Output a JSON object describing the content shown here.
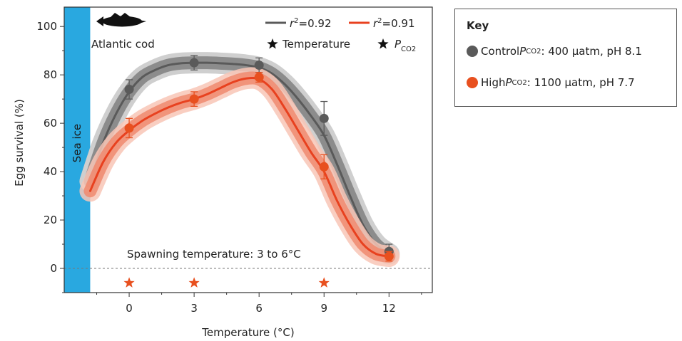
{
  "colors": {
    "control": "#5a5a5a",
    "control_band_inner": "#8c8c8c",
    "control_band_outer": "#cfcfcf",
    "high": "#e8411f",
    "high_band_inner": "#f08a6e",
    "high_band_outer": "#f8c6b6",
    "sea_ice": "#29a8e0",
    "star_temperature": "#111111",
    "star_pco2": "#e8501f"
  },
  "chart_data": {
    "type": "line",
    "xlabel": "Temperature (°C)",
    "ylabel": "Egg survival (%)",
    "xlim": [
      -3.0,
      14.0
    ],
    "ylim": [
      -10,
      108
    ],
    "xticks": [
      0,
      3,
      6,
      9,
      12
    ],
    "yticks": [
      0,
      20,
      40,
      60,
      80,
      100
    ],
    "series": [
      {
        "key": "control",
        "legend_label": "r",
        "legend_sup": "2",
        "legend_value": "=0.92",
        "points": [
          {
            "x": 0,
            "y": 74,
            "err": 4
          },
          {
            "x": 3,
            "y": 85,
            "err": 3
          },
          {
            "x": 6,
            "y": 84,
            "err": 3
          },
          {
            "x": 9,
            "y": 62,
            "err": 7
          },
          {
            "x": 12,
            "y": 7,
            "err": 3
          }
        ],
        "curve_x": [
          -1.8,
          -1.2,
          -0.6,
          0,
          0.6,
          1.2,
          1.8,
          2.4,
          3,
          3.6,
          4.2,
          4.8,
          5.4,
          6,
          6.6,
          7.2,
          7.8,
          8.4,
          9,
          9.6,
          10.2,
          10.8,
          11.4,
          12
        ],
        "curve_y": [
          36,
          52,
          64,
          73,
          79,
          82,
          84,
          84.8,
          85,
          85,
          84.8,
          84.5,
          84,
          83,
          80.5,
          76,
          70,
          63,
          55,
          43,
          30,
          18,
          10,
          6
        ]
      },
      {
        "key": "high",
        "legend_label": "r",
        "legend_sup": "2",
        "legend_value": "=0.91",
        "points": [
          {
            "x": 0,
            "y": 58,
            "err": 4
          },
          {
            "x": 3,
            "y": 70,
            "err": 3
          },
          {
            "x": 6,
            "y": 79,
            "err": 2
          },
          {
            "x": 9,
            "y": 42,
            "err": 5
          },
          {
            "x": 12,
            "y": 5,
            "err": 2
          }
        ],
        "curve_x": [
          -1.8,
          -1.2,
          -0.6,
          0,
          0.6,
          1.2,
          1.8,
          2.4,
          3,
          3.6,
          4.2,
          4.8,
          5.4,
          6,
          6.6,
          7.2,
          7.8,
          8.4,
          9,
          9.6,
          10.2,
          10.8,
          11.4,
          12
        ],
        "curve_y": [
          32,
          44,
          52,
          57,
          61,
          64,
          66.5,
          68.5,
          70,
          72,
          74.5,
          77,
          78.5,
          78.2,
          74,
          66,
          57,
          48,
          40,
          28,
          18,
          10,
          6,
          5
        ]
      }
    ],
    "temperature_stars_x": [],
    "pco2_stars_x": [
      0,
      3,
      9
    ],
    "star_y": -6,
    "sea_ice_x": [
      -3.0,
      -1.8
    ],
    "zero_line": true,
    "annotations": {
      "species": "Atlantic cod",
      "sea_ice": "Sea ice",
      "spawning": "Spawning temperature: 3 to 6°C",
      "star_temperature_label": "Temperature",
      "star_pco2_label": "P",
      "star_pco2_sub": "CO2"
    }
  },
  "key": {
    "title": "Key",
    "control": {
      "prefix": "Control ",
      "p": "P",
      "sub": "CO2",
      "suffix": ": 400 µatm, pH 8.1"
    },
    "high": {
      "prefix": "High ",
      "p": "P",
      "sub": "CO2",
      "suffix": ": 1100 µatm, pH 7.7"
    }
  }
}
